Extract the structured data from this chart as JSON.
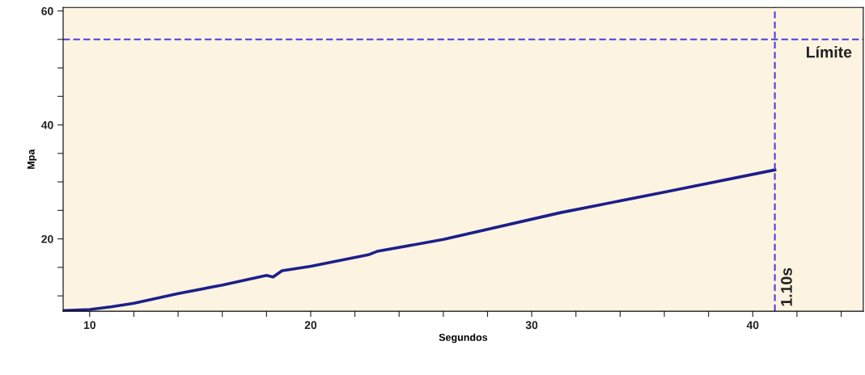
{
  "chart_data": {
    "type": "line",
    "xlabel": "Segundos",
    "ylabel": "Mpa",
    "x": [
      8.8,
      10,
      11,
      12,
      14,
      16,
      18,
      18.3,
      18.7,
      20,
      22.6,
      23,
      26,
      31.3,
      36,
      41
    ],
    "series": [
      {
        "color": "#1c1f8a",
        "values": [
          7.4,
          7.6,
          8.1,
          8.7,
          10.4,
          11.9,
          13.6,
          13.3,
          14.4,
          15.2,
          17.2,
          17.8,
          19.9,
          24.6,
          28.2,
          32.1
        ]
      }
    ],
    "xlim": [
      8.8,
      45
    ],
    "ylim": [
      7.3,
      60.6
    ],
    "xticks": [
      10,
      {
        "value": 12,
        "label": null
      },
      {
        "value": 14,
        "label": null
      },
      {
        "value": 16,
        "label": null
      },
      {
        "value": 18,
        "label": null
      },
      20,
      {
        "value": 22,
        "label": null
      },
      {
        "value": 24,
        "label": null
      },
      {
        "value": 26,
        "label": null
      },
      {
        "value": 28,
        "label": null
      },
      30,
      {
        "value": 32,
        "label": null
      },
      {
        "value": 34,
        "label": null
      },
      {
        "value": 36,
        "label": null
      },
      {
        "value": 38,
        "label": null
      },
      40,
      {
        "value": 42,
        "label": null
      },
      {
        "value": 44,
        "label": null
      }
    ],
    "yticks": [
      {
        "value": 10,
        "label": null
      },
      {
        "value": 15,
        "label": null
      },
      20,
      {
        "value": 25,
        "label": null
      },
      {
        "value": 30,
        "label": null
      },
      {
        "value": 35,
        "label": null
      },
      40,
      {
        "value": 45,
        "label": null
      },
      {
        "value": 50,
        "label": null
      },
      {
        "value": 55,
        "label": null
      },
      60
    ],
    "ref_lines": [
      {
        "axis": "y",
        "value": 55,
        "label": "Límite",
        "color": "#4a3ee0",
        "line_style": "dashed"
      },
      {
        "axis": "x",
        "value": 41,
        "label": "1.10s",
        "color": "#4a3ee0",
        "line_style": "dashed"
      }
    ],
    "grid": false,
    "marker": "none",
    "line_style": "solid"
  }
}
